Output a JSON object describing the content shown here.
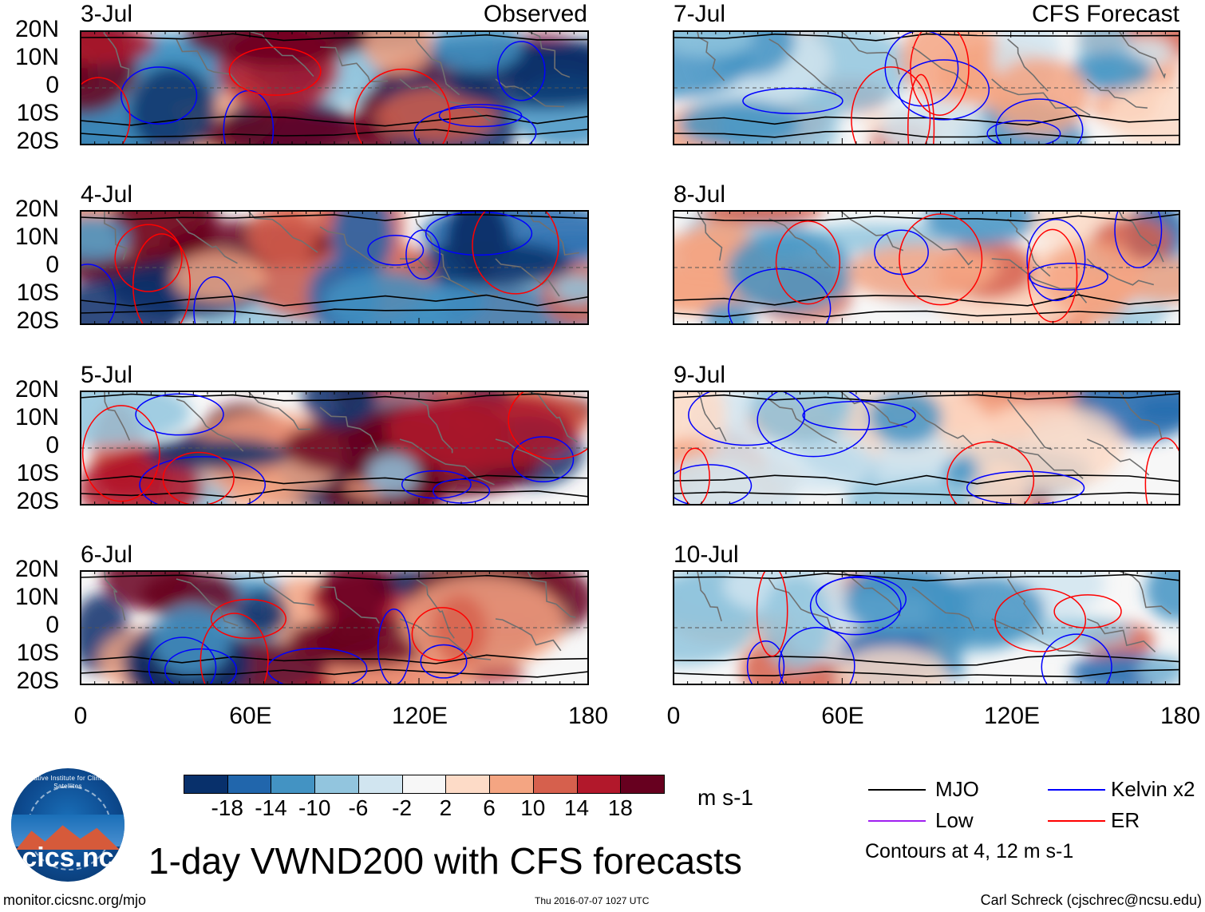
{
  "column_headers": {
    "observed": "Observed",
    "forecast": "CFS Forecast"
  },
  "panels_left": [
    "3-Jul",
    "4-Jul",
    "5-Jul",
    "6-Jul"
  ],
  "panels_right": [
    "7-Jul",
    "8-Jul",
    "9-Jul",
    "10-Jul"
  ],
  "lat_labels": [
    "20N",
    "10N",
    "0",
    "10S",
    "20S"
  ],
  "lon_labels": [
    "0",
    "60E",
    "120E",
    "180"
  ],
  "colorbar": {
    "colors": [
      "#08306b",
      "#2166ac",
      "#4393c3",
      "#92c5de",
      "#d1e5f0",
      "#f7f7f7",
      "#fddbc7",
      "#f4a582",
      "#d6604d",
      "#b2182b",
      "#67001f"
    ],
    "labels": [
      "-18",
      "-14",
      "-10",
      "-6",
      "-2",
      "2",
      "6",
      "10",
      "14",
      "18"
    ],
    "units": "m s-1"
  },
  "legend": {
    "items": [
      {
        "label": "MJO",
        "color": "#000000"
      },
      {
        "label": "Kelvin x2",
        "color": "#0000ff"
      },
      {
        "label": "Low",
        "color": "#a020f0"
      },
      {
        "label": "ER",
        "color": "#ff0000"
      }
    ],
    "contours_note": "Contours at 4, 12 m s-1"
  },
  "title": "1-day VWND200 with CFS forecasts",
  "logo_text": "cics.nc",
  "logo_ring_text": "Cooperative Institute for Climate and Satellites",
  "footer": {
    "url": "monitor.cicsnc.org/mjo",
    "timestamp": "Thu 2016-07-07 1027 UTC",
    "author": "Carl Schreck (cjschrec@ncsu.edu)"
  }
}
